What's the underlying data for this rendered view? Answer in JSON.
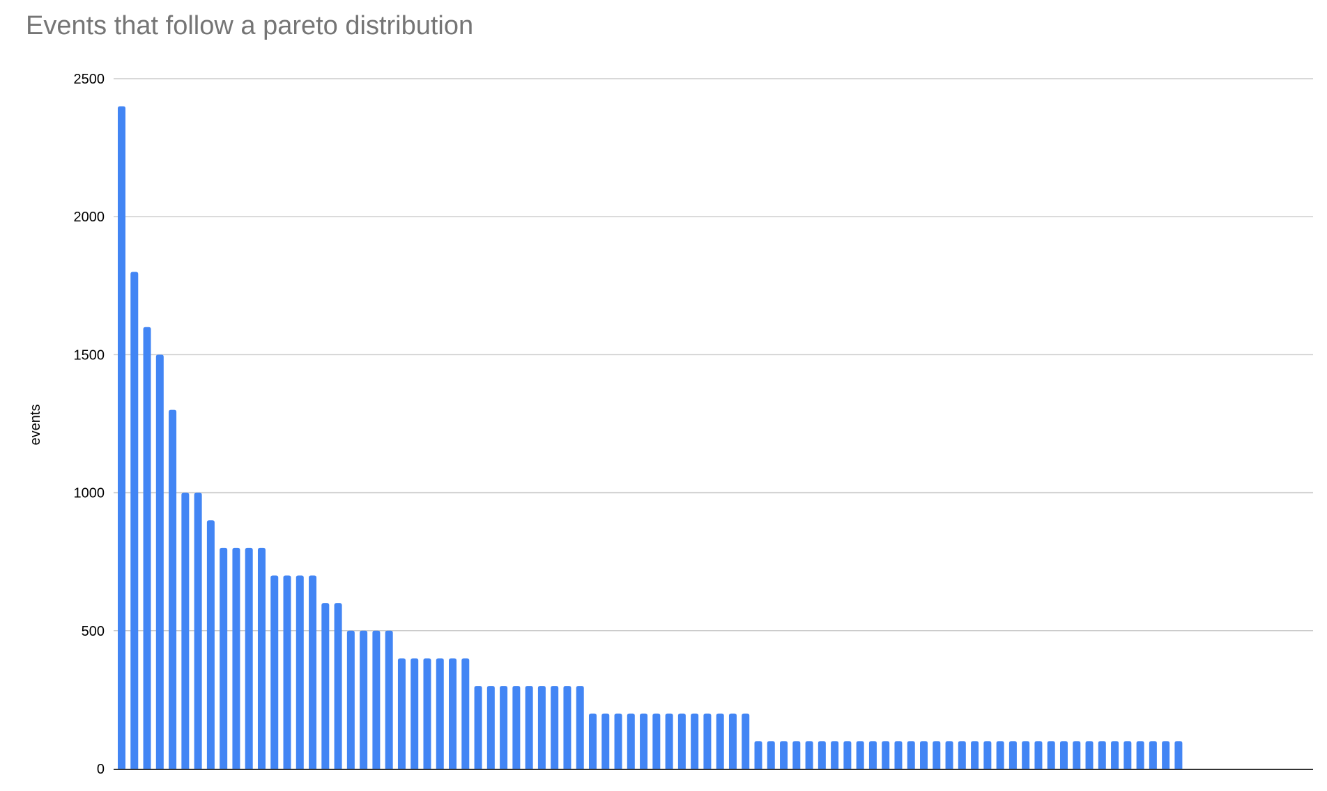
{
  "chart_data": {
    "type": "bar",
    "title": "Events that follow a pareto distribution",
    "xlabel": "",
    "ylabel": "events",
    "ylim": [
      0,
      2500
    ],
    "yticks": [
      "0",
      "500",
      "1000",
      "1500",
      "2000",
      "2500"
    ],
    "grid": true,
    "legend": "none",
    "bar_color": "#4285f4",
    "values": [
      2400,
      1800,
      1600,
      1500,
      1300,
      1000,
      1000,
      900,
      800,
      800,
      800,
      800,
      700,
      700,
      700,
      700,
      600,
      600,
      500,
      500,
      500,
      500,
      400,
      400,
      400,
      400,
      400,
      400,
      300,
      300,
      300,
      300,
      300,
      300,
      300,
      300,
      300,
      200,
      200,
      200,
      200,
      200,
      200,
      200,
      200,
      200,
      200,
      200,
      200,
      200,
      100,
      100,
      100,
      100,
      100,
      100,
      100,
      100,
      100,
      100,
      100,
      100,
      100,
      100,
      100,
      100,
      100,
      100,
      100,
      100,
      100,
      100,
      100,
      100,
      100,
      100,
      100,
      100,
      100,
      100,
      100,
      100,
      100,
      100
    ]
  }
}
